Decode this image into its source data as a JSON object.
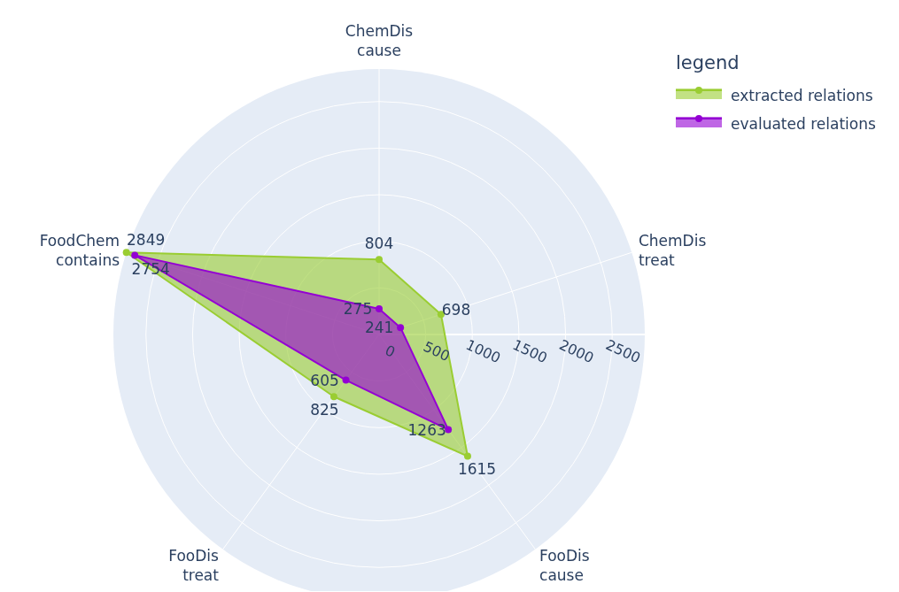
{
  "chart_data": {
    "type": "radar",
    "categories": [
      "ChemDis\ncause",
      "ChemDis\ntreat",
      "FooDis\ncause",
      "FooDis\ntreat",
      "FoodChem\ncontains"
    ],
    "series": [
      {
        "name": "extracted relations",
        "color": "#9acd32",
        "values": [
          804,
          698,
          1615,
          825,
          2849
        ]
      },
      {
        "name": "evaluated relations",
        "color": "#9400d3",
        "values": [
          275,
          241,
          1263,
          605,
          2754
        ]
      }
    ],
    "ylim": [
      0,
      2849
    ],
    "yticks": [
      0,
      500,
      1000,
      1500,
      2000,
      2500
    ],
    "data_labels": true,
    "legend": "top right",
    "legend_title": "legend",
    "marker": "circle",
    "grid": true
  }
}
